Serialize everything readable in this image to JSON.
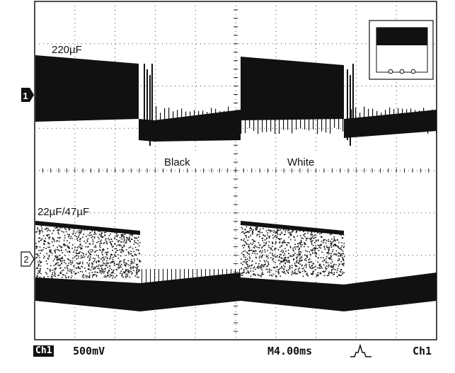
{
  "scope": {
    "channels": [
      {
        "marker": "1",
        "label": "220µF"
      },
      {
        "marker": "2",
        "label": "22µF/47µF"
      }
    ],
    "annotations": {
      "left": "Black",
      "right": "White"
    }
  },
  "status_bar": {
    "channel": "Ch1",
    "volts_per_div": "500mV",
    "time_per_div": "M4.00ms",
    "trigger_source": "Ch1"
  },
  "icons": {
    "trigger": "rising-edge-trigger-icon",
    "inset": "black-white-pattern-icon"
  },
  "colors": {
    "trace": "#111111",
    "graticule": "#111111",
    "background": "#ffffff"
  }
}
